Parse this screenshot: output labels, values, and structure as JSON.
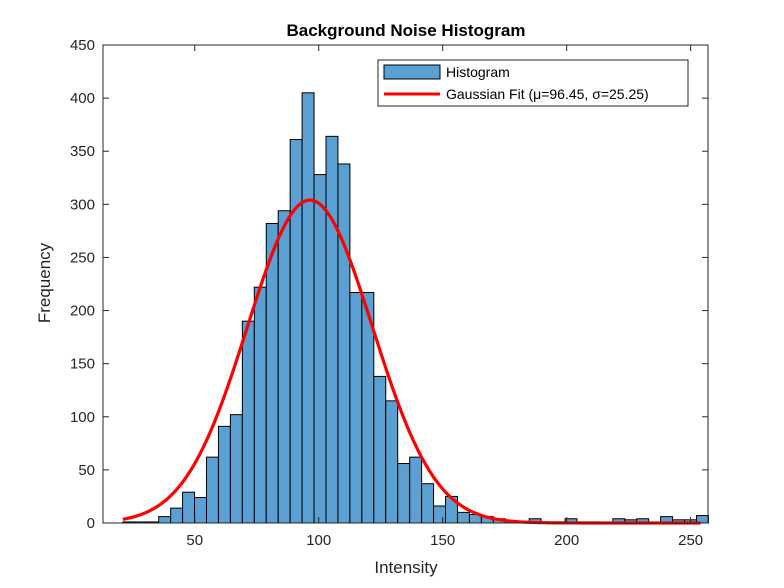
{
  "chart_data": {
    "type": "bar",
    "title": "Background Noise Histogram",
    "xlabel": "Intensity",
    "ylabel": "Frequency",
    "xlim": [
      13,
      257
    ],
    "ylim": [
      0,
      450
    ],
    "xticks": [
      50,
      100,
      150,
      200,
      250
    ],
    "yticks": [
      0,
      50,
      100,
      150,
      200,
      250,
      300,
      350,
      400,
      450
    ],
    "grid": false,
    "legend_position": "top-right",
    "bin_width": 4.82,
    "bin_start": 21.0,
    "bar_color": "#5aa0d2",
    "bar_edge_color": "#000000",
    "fit_color": "#ff0000",
    "series": [
      {
        "name": "Histogram",
        "kind": "histogram",
        "values": [
          1,
          1,
          1,
          6,
          14,
          29,
          24,
          62,
          91,
          102,
          190,
          222,
          282,
          294,
          361,
          405,
          328,
          364,
          338,
          217,
          217,
          138,
          115,
          56,
          62,
          37,
          16,
          25,
          10,
          8,
          6,
          4,
          2,
          1,
          4,
          1,
          1,
          4,
          1,
          1,
          0,
          4,
          3,
          4,
          0,
          6,
          3,
          3,
          7
        ]
      },
      {
        "name": "Gaussian Fit (μ=96.45, σ=25.25)",
        "kind": "gaussian",
        "mu": 96.45,
        "sigma": 25.25,
        "peak": 304,
        "x_range": [
          21,
          254
        ]
      }
    ]
  }
}
